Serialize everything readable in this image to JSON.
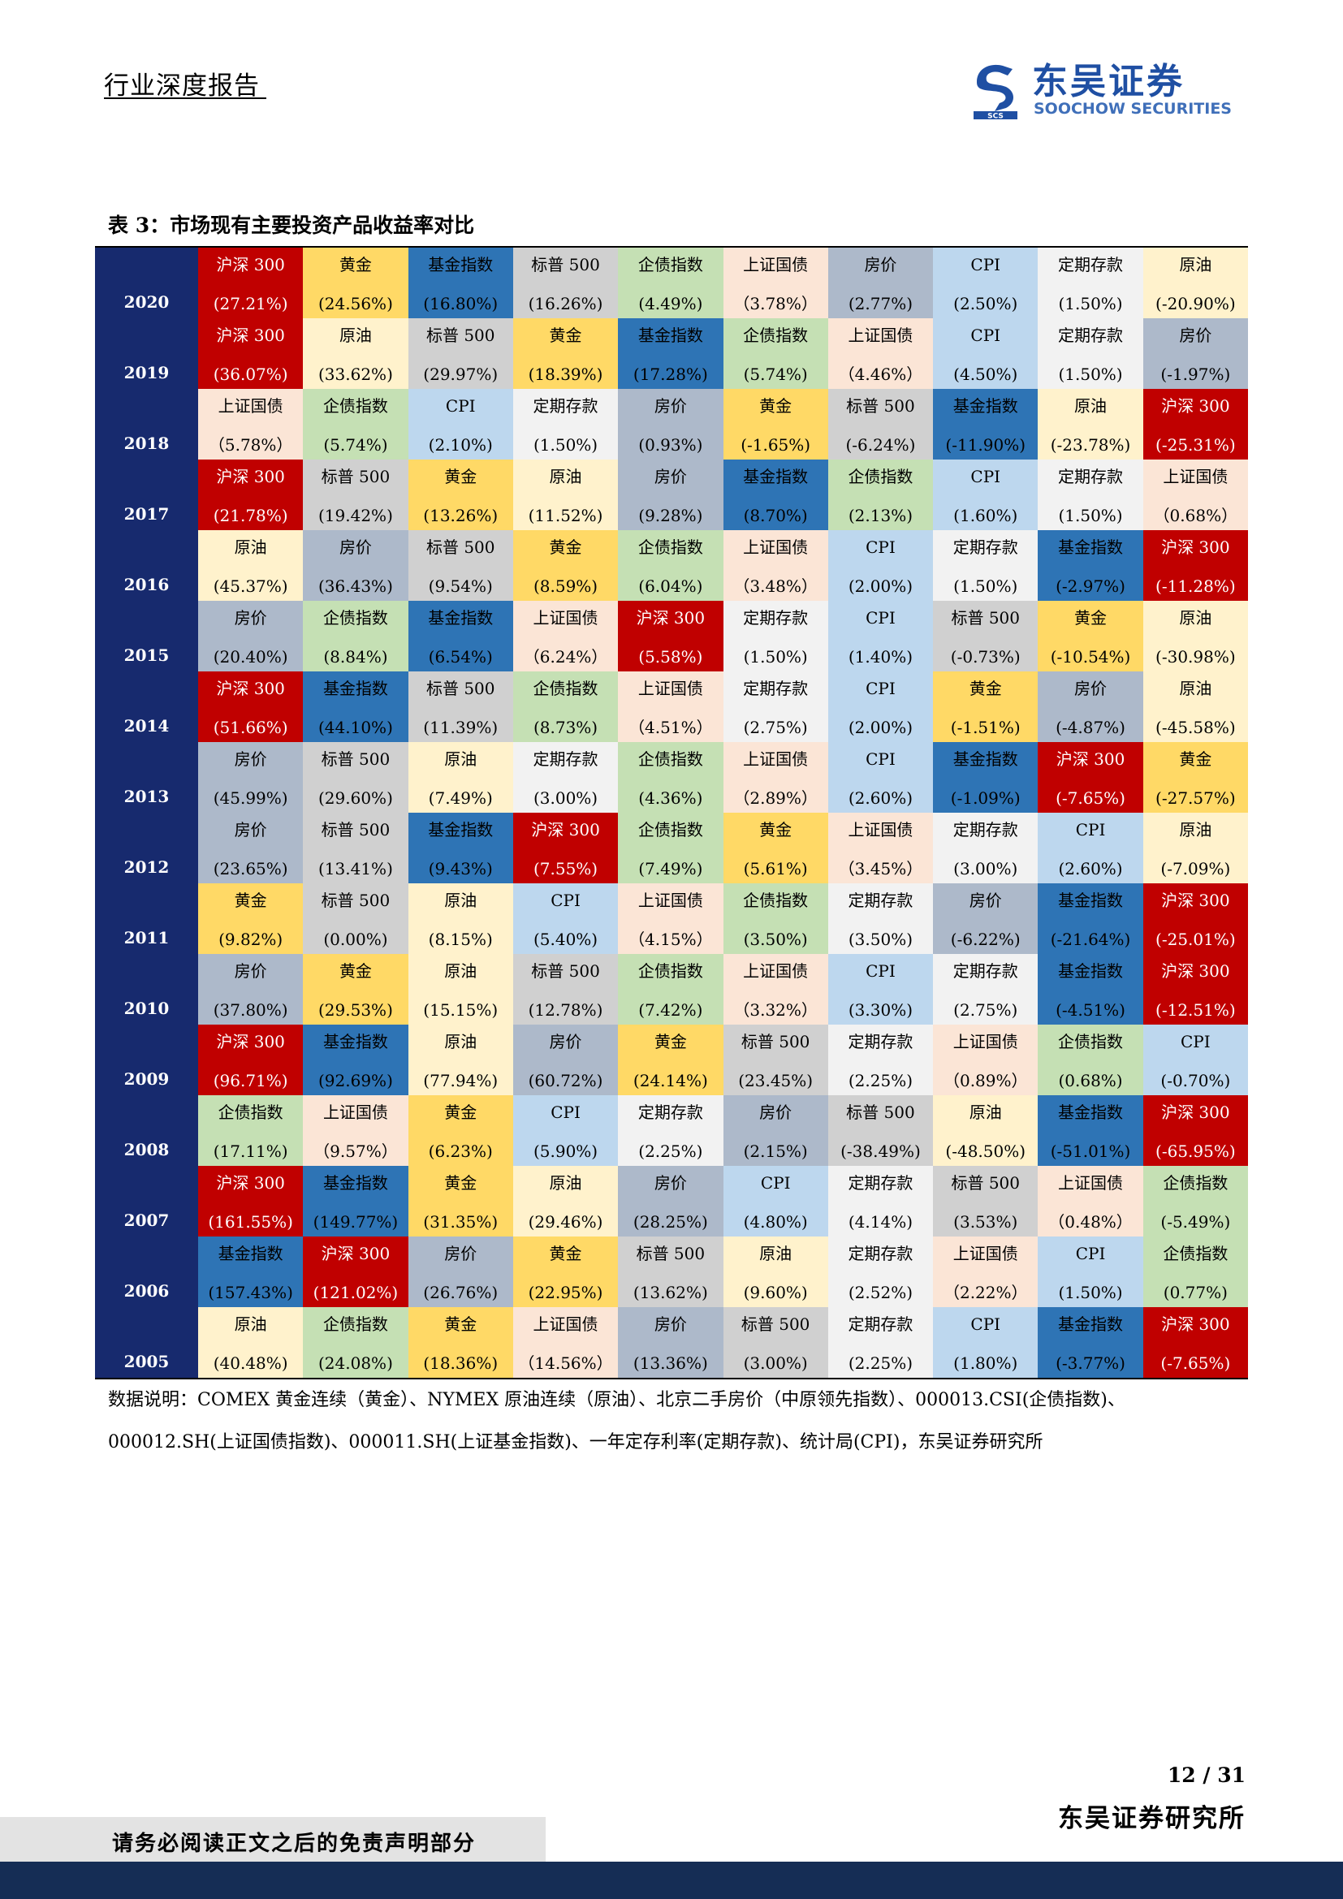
{
  "header": {
    "report_type": "行业深度报告",
    "logo_cn": "东吴证券",
    "logo_en": "SOOCHOW SECURITIES",
    "logo_mark_text": "SCS"
  },
  "table": {
    "caption": "表 3：市场现有主要投资产品收益率对比",
    "colors": {
      "year_bg": "#172a6e",
      "沪深 300": "#c00000",
      "黄金": "#ffd966",
      "基金指数": "#2e74b5",
      "标普 500": "#d0d0d0",
      "企债指数": "#c5e0b4",
      "上证国债": "#fbe5d6",
      "房价": "#adb9ca",
      "CPI": "#bdd7ee",
      "定期存款": "#f2f2f2",
      "原油": "#fff2cc"
    },
    "text_colors": {
      "沪深 300": "#ffffff",
      "default": "#000000"
    },
    "rows": [
      {
        "year": "2020",
        "cells": [
          {
            "name": "沪深 300",
            "value": "(27.21%)"
          },
          {
            "name": "黄金",
            "value": "(24.56%)"
          },
          {
            "name": "基金指数",
            "value": "(16.80%)"
          },
          {
            "name": "标普 500",
            "value": "(16.26%)"
          },
          {
            "name": "企债指数",
            "value": "(4.49%)"
          },
          {
            "name": "上证国债",
            "value": "（3.78%）"
          },
          {
            "name": "房价",
            "value": "(2.77%)"
          },
          {
            "name": "CPI",
            "value": "(2.50%)"
          },
          {
            "name": "定期存款",
            "value": "(1.50%)"
          },
          {
            "name": "原油",
            "value": "(-20.90%)"
          }
        ]
      },
      {
        "year": "2019",
        "cells": [
          {
            "name": "沪深 300",
            "value": "(36.07%)"
          },
          {
            "name": "原油",
            "value": "(33.62%)"
          },
          {
            "name": "标普 500",
            "value": "(29.97%)"
          },
          {
            "name": "黄金",
            "value": "(18.39%)"
          },
          {
            "name": "基金指数",
            "value": "(17.28%)"
          },
          {
            "name": "企债指数",
            "value": "(5.74%)"
          },
          {
            "name": "上证国债",
            "value": "（4.46%）"
          },
          {
            "name": "CPI",
            "value": "(4.50%)"
          },
          {
            "name": "定期存款",
            "value": "(1.50%)"
          },
          {
            "name": "房价",
            "value": "(-1.97%)"
          }
        ]
      },
      {
        "year": "2018",
        "cells": [
          {
            "name": "上证国债",
            "value": "（5.78%）"
          },
          {
            "name": "企债指数",
            "value": "(5.74%)"
          },
          {
            "name": "CPI",
            "value": "(2.10%)"
          },
          {
            "name": "定期存款",
            "value": "(1.50%)"
          },
          {
            "name": "房价",
            "value": "(0.93%)"
          },
          {
            "name": "黄金",
            "value": "(-1.65%)"
          },
          {
            "name": "标普 500",
            "value": "(-6.24%)"
          },
          {
            "name": "基金指数",
            "value": "(-11.90%)"
          },
          {
            "name": "原油",
            "value": "(-23.78%)"
          },
          {
            "name": "沪深 300",
            "value": "(-25.31%)"
          }
        ]
      },
      {
        "year": "2017",
        "cells": [
          {
            "name": "沪深 300",
            "value": "(21.78%)"
          },
          {
            "name": "标普 500",
            "value": "(19.42%)"
          },
          {
            "name": "黄金",
            "value": "(13.26%)"
          },
          {
            "name": "原油",
            "value": "(11.52%)"
          },
          {
            "name": "房价",
            "value": "(9.28%)"
          },
          {
            "name": "基金指数",
            "value": "(8.70%)"
          },
          {
            "name": "企债指数",
            "value": "(2.13%)"
          },
          {
            "name": "CPI",
            "value": "(1.60%)"
          },
          {
            "name": "定期存款",
            "value": "(1.50%)"
          },
          {
            "name": "上证国债",
            "value": "（0.68%）"
          }
        ]
      },
      {
        "year": "2016",
        "cells": [
          {
            "name": "原油",
            "value": "(45.37%)"
          },
          {
            "name": "房价",
            "value": "(36.43%)"
          },
          {
            "name": "标普 500",
            "value": "(9.54%)"
          },
          {
            "name": "黄金",
            "value": "(8.59%)"
          },
          {
            "name": "企债指数",
            "value": "(6.04%)"
          },
          {
            "name": "上证国债",
            "value": "（3.48%）"
          },
          {
            "name": "CPI",
            "value": "(2.00%)"
          },
          {
            "name": "定期存款",
            "value": "(1.50%)"
          },
          {
            "name": "基金指数",
            "value": "(-2.97%)"
          },
          {
            "name": "沪深 300",
            "value": "(-11.28%)"
          }
        ]
      },
      {
        "year": "2015",
        "cells": [
          {
            "name": "房价",
            "value": "(20.40%)"
          },
          {
            "name": "企债指数",
            "value": "(8.84%)"
          },
          {
            "name": "基金指数",
            "value": "(6.54%)"
          },
          {
            "name": "上证国债",
            "value": "（6.24%）"
          },
          {
            "name": "沪深 300",
            "value": "(5.58%)"
          },
          {
            "name": "定期存款",
            "value": "(1.50%)"
          },
          {
            "name": "CPI",
            "value": "(1.40%)"
          },
          {
            "name": "标普 500",
            "value": "(-0.73%)"
          },
          {
            "name": "黄金",
            "value": "(-10.54%)"
          },
          {
            "name": "原油",
            "value": "(-30.98%)"
          }
        ]
      },
      {
        "year": "2014",
        "cells": [
          {
            "name": "沪深 300",
            "value": "(51.66%)"
          },
          {
            "name": "基金指数",
            "value": "(44.10%)"
          },
          {
            "name": "标普 500",
            "value": "(11.39%)"
          },
          {
            "name": "企债指数",
            "value": "(8.73%)"
          },
          {
            "name": "上证国债",
            "value": "（4.51%）"
          },
          {
            "name": "定期存款",
            "value": "(2.75%)"
          },
          {
            "name": "CPI",
            "value": "(2.00%)"
          },
          {
            "name": "黄金",
            "value": "(-1.51%)"
          },
          {
            "name": "房价",
            "value": "(-4.87%)"
          },
          {
            "name": "原油",
            "value": "(-45.58%)"
          }
        ]
      },
      {
        "year": "2013",
        "cells": [
          {
            "name": "房价",
            "value": "(45.99%)"
          },
          {
            "name": "标普 500",
            "value": "(29.60%)"
          },
          {
            "name": "原油",
            "value": "(7.49%)"
          },
          {
            "name": "定期存款",
            "value": "(3.00%)"
          },
          {
            "name": "企债指数",
            "value": "(4.36%)"
          },
          {
            "name": "上证国债",
            "value": "（2.89%）"
          },
          {
            "name": "CPI",
            "value": "(2.60%)"
          },
          {
            "name": "基金指数",
            "value": "(-1.09%)"
          },
          {
            "name": "沪深 300",
            "value": "(-7.65%)"
          },
          {
            "name": "黄金",
            "value": "(-27.57%)"
          }
        ]
      },
      {
        "year": "2012",
        "cells": [
          {
            "name": "房价",
            "value": "(23.65%)"
          },
          {
            "name": "标普 500",
            "value": "(13.41%)"
          },
          {
            "name": "基金指数",
            "value": "(9.43%)"
          },
          {
            "name": "沪深 300",
            "value": "(7.55%)"
          },
          {
            "name": "企债指数",
            "value": "(7.49%)"
          },
          {
            "name": "黄金",
            "value": "(5.61%)"
          },
          {
            "name": "上证国债",
            "value": "（3.45%）"
          },
          {
            "name": "定期存款",
            "value": "(3.00%)"
          },
          {
            "name": "CPI",
            "value": "(2.60%)"
          },
          {
            "name": "原油",
            "value": "(-7.09%)"
          }
        ]
      },
      {
        "year": "2011",
        "cells": [
          {
            "name": "黄金",
            "value": "(9.82%)"
          },
          {
            "name": "标普 500",
            "value": "(0.00%)"
          },
          {
            "name": "原油",
            "value": "(8.15%)"
          },
          {
            "name": "CPI",
            "value": "(5.40%)"
          },
          {
            "name": "上证国债",
            "value": "（4.15%）"
          },
          {
            "name": "企债指数",
            "value": "(3.50%)"
          },
          {
            "name": "定期存款",
            "value": "(3.50%)"
          },
          {
            "name": "房价",
            "value": "(-6.22%)"
          },
          {
            "name": "基金指数",
            "value": "(-21.64%)"
          },
          {
            "name": "沪深 300",
            "value": "(-25.01%)"
          }
        ]
      },
      {
        "year": "2010",
        "cells": [
          {
            "name": "房价",
            "value": "(37.80%)"
          },
          {
            "name": "黄金",
            "value": "(29.53%)"
          },
          {
            "name": "原油",
            "value": "(15.15%)"
          },
          {
            "name": "标普 500",
            "value": "(12.78%)"
          },
          {
            "name": "企债指数",
            "value": "(7.42%)"
          },
          {
            "name": "上证国债",
            "value": "（3.32%）"
          },
          {
            "name": "CPI",
            "value": "(3.30%)"
          },
          {
            "name": "定期存款",
            "value": "(2.75%)"
          },
          {
            "name": "基金指数",
            "value": "(-4.51%)"
          },
          {
            "name": "沪深 300",
            "value": "(-12.51%)"
          }
        ]
      },
      {
        "year": "2009",
        "cells": [
          {
            "name": "沪深 300",
            "value": "(96.71%)"
          },
          {
            "name": "基金指数",
            "value": "(92.69%)"
          },
          {
            "name": "原油",
            "value": "(77.94%)"
          },
          {
            "name": "房价",
            "value": "(60.72%)"
          },
          {
            "name": "黄金",
            "value": "(24.14%)"
          },
          {
            "name": "标普 500",
            "value": "(23.45%)"
          },
          {
            "name": "定期存款",
            "value": "(2.25%)"
          },
          {
            "name": "上证国债",
            "value": "（0.89%）"
          },
          {
            "name": "企债指数",
            "value": "(0.68%)"
          },
          {
            "name": "CPI",
            "value": "(-0.70%)"
          }
        ]
      },
      {
        "year": "2008",
        "cells": [
          {
            "name": "企债指数",
            "value": "(17.11%)"
          },
          {
            "name": "上证国债",
            "value": "（9.57%）"
          },
          {
            "name": "黄金",
            "value": "(6.23%)"
          },
          {
            "name": "CPI",
            "value": "(5.90%)"
          },
          {
            "name": "定期存款",
            "value": "(2.25%)"
          },
          {
            "name": "房价",
            "value": "(2.15%)"
          },
          {
            "name": "标普 500",
            "value": "(-38.49%)"
          },
          {
            "name": "原油",
            "value": "(-48.50%)"
          },
          {
            "name": "基金指数",
            "value": "(-51.01%)"
          },
          {
            "name": "沪深 300",
            "value": "(-65.95%)"
          }
        ]
      },
      {
        "year": "2007",
        "cells": [
          {
            "name": "沪深 300",
            "value": "(161.55%)"
          },
          {
            "name": "基金指数",
            "value": "(149.77%)"
          },
          {
            "name": "黄金",
            "value": "(31.35%)"
          },
          {
            "name": "原油",
            "value": "(29.46%)"
          },
          {
            "name": "房价",
            "value": "(28.25%)"
          },
          {
            "name": "CPI",
            "value": "(4.80%)"
          },
          {
            "name": "定期存款",
            "value": "(4.14%)"
          },
          {
            "name": "标普 500",
            "value": "(3.53%)"
          },
          {
            "name": "上证国债",
            "value": "（0.48%）"
          },
          {
            "name": "企债指数",
            "value": "(-5.49%)"
          }
        ]
      },
      {
        "year": "2006",
        "cells": [
          {
            "name": "基金指数",
            "value": "(157.43%)"
          },
          {
            "name": "沪深 300",
            "value": "(121.02%)"
          },
          {
            "name": "房价",
            "value": "(26.76%)"
          },
          {
            "name": "黄金",
            "value": "(22.95%)"
          },
          {
            "name": "标普 500",
            "value": "(13.62%)"
          },
          {
            "name": "原油",
            "value": "(9.60%)"
          },
          {
            "name": "定期存款",
            "value": "(2.52%)"
          },
          {
            "name": "上证国债",
            "value": "（2.22%）"
          },
          {
            "name": "CPI",
            "value": "(1.50%)"
          },
          {
            "name": "企债指数",
            "value": "(0.77%)"
          }
        ]
      },
      {
        "year": "2005",
        "cells": [
          {
            "name": "原油",
            "value": "(40.48%)"
          },
          {
            "name": "企债指数",
            "value": "(24.08%)"
          },
          {
            "name": "黄金",
            "value": "(18.36%)"
          },
          {
            "name": "上证国债",
            "value": "（14.56%）"
          },
          {
            "name": "房价",
            "value": "(13.36%)"
          },
          {
            "name": "标普 500",
            "value": "(3.00%)"
          },
          {
            "name": "定期存款",
            "value": "(2.25%)"
          },
          {
            "name": "CPI",
            "value": "(1.80%)"
          },
          {
            "name": "基金指数",
            "value": "(-3.77%)"
          },
          {
            "name": "沪深 300",
            "value": "(-7.65%)"
          }
        ]
      }
    ],
    "note_line1": "数据说明：COMEX 黄金连续（黄金）、NYMEX 原油连续（原油）、北京二手房价（中原领先指数）、000013.CSI(企债指数)、",
    "note_line2": "000012.SH(上证国债指数)、000011.SH(上证基金指数)、一年定存利率(定期存款)、统计局(CPI)，东吴证券研究所"
  },
  "footer": {
    "page_number": "12 / 31",
    "dept": "东吴证券研究所",
    "disclaimer": "请务必阅读正文之后的免责声明部分"
  }
}
